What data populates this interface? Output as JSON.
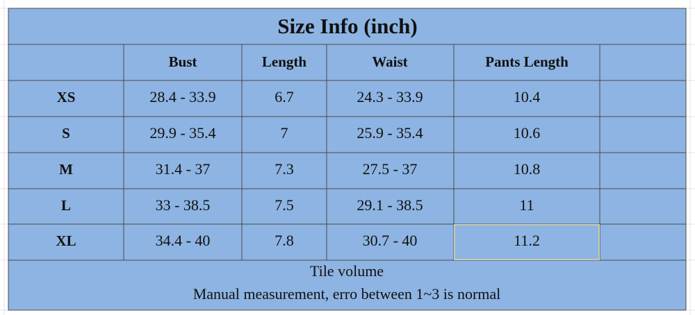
{
  "title": "Size Info (inch)",
  "table": {
    "header": [
      "Bust",
      "Length",
      "Waist",
      "Pants Length"
    ],
    "rows": [
      {
        "size": "XS",
        "cells": [
          "28.4 - 33.9",
          "6.7",
          "24.3 - 33.9",
          "10.4"
        ]
      },
      {
        "size": "S",
        "cells": [
          "29.9 - 35.4",
          "7",
          "25.9 - 35.4",
          "10.6"
        ]
      },
      {
        "size": "M",
        "cells": [
          "31.4 - 37",
          "7.3",
          "27.5 - 37",
          "10.8"
        ]
      },
      {
        "size": "L",
        "cells": [
          "33 - 38.5",
          "7.5",
          "29.1 - 38.5",
          "11"
        ]
      },
      {
        "size": "XL",
        "cells": [
          "34.4 - 40",
          "7.8",
          "30.7 - 40",
          "11.2"
        ]
      }
    ]
  },
  "footer": [
    "Tile volume",
    "Manual measurement, erro between 1~3 is normal"
  ]
}
